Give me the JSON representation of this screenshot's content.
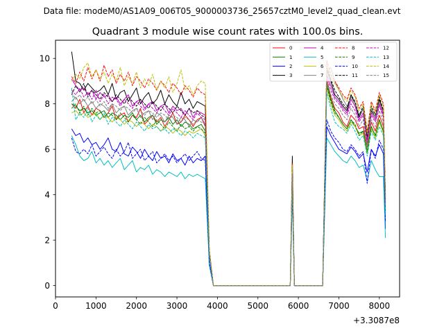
{
  "chart_data": {
    "type": "line",
    "suptitle": "Data file: modeM0/AS1A09_006T05_9000003736_25657cztM0_level2_quad_clean.evt",
    "title": "Quadrant 3 module wise count rates with 100.0s bins.",
    "xlabel": "",
    "ylabel": "",
    "x_offset_label": "+3.3087e8",
    "xlim": [
      0,
      8500
    ],
    "ylim": [
      -0.5,
      10.8
    ],
    "x_ticks": [
      0,
      1000,
      2000,
      3000,
      4000,
      5000,
      6000,
      7000,
      8000
    ],
    "y_ticks": [
      0,
      2,
      4,
      6,
      8,
      10
    ],
    "x": [
      400,
      500,
      600,
      700,
      800,
      900,
      1000,
      1100,
      1200,
      1300,
      1400,
      1500,
      1600,
      1700,
      1800,
      1900,
      2000,
      2100,
      2200,
      2300,
      2400,
      2500,
      2600,
      2700,
      2800,
      2900,
      3000,
      3100,
      3200,
      3300,
      3400,
      3500,
      3600,
      3700,
      3800,
      3900,
      4000,
      5800,
      5850,
      5900,
      6000,
      6600,
      6700,
      6800,
      6900,
      7000,
      7100,
      7200,
      7300,
      7400,
      7500,
      7600,
      7700,
      7800,
      7900,
      8000,
      8100,
      8150
    ],
    "legend_location": "upper right",
    "series": [
      {
        "name": "0",
        "color": "#ff0000",
        "style": "solid",
        "values": [
          8.0,
          7.8,
          8.2,
          7.6,
          7.9,
          7.5,
          7.8,
          7.7,
          7.4,
          7.6,
          7.9,
          7.3,
          7.5,
          7.6,
          7.2,
          7.5,
          7.4,
          7.8,
          7.1,
          7.3,
          7.5,
          7.2,
          7.4,
          7.0,
          7.3,
          7.6,
          7.1,
          7.2,
          7.5,
          7.3,
          7.0,
          7.3,
          7.4,
          7.0,
          1.5,
          0.0,
          0.0,
          0.0,
          5.0,
          0.0,
          0.0,
          0.0,
          9.1,
          8.3,
          7.8,
          7.6,
          7.2,
          7.0,
          7.5,
          7.3,
          6.9,
          7.0,
          6.1,
          7.2,
          6.8,
          7.5,
          7.0,
          3.5
        ]
      },
      {
        "name": "1",
        "color": "#008000",
        "style": "solid",
        "values": [
          8.0,
          7.9,
          7.7,
          7.8,
          7.6,
          7.7,
          7.5,
          7.6,
          7.7,
          7.4,
          7.6,
          7.5,
          7.3,
          7.5,
          7.4,
          7.6,
          7.3,
          7.5,
          7.2,
          7.4,
          7.5,
          7.1,
          7.3,
          7.2,
          7.4,
          7.1,
          7.3,
          7.0,
          7.2,
          7.1,
          6.9,
          7.0,
          7.1,
          6.8,
          1.4,
          0.0,
          0.0,
          0.0,
          4.8,
          0.0,
          0.0,
          0.0,
          8.9,
          8.2,
          7.7,
          7.4,
          7.1,
          6.9,
          7.3,
          7.0,
          6.7,
          6.8,
          5.9,
          7.0,
          6.6,
          7.3,
          6.8,
          3.4
        ]
      },
      {
        "name": "2",
        "color": "#0000ff",
        "style": "solid",
        "values": [
          6.9,
          6.6,
          6.7,
          6.3,
          6.5,
          6.2,
          6.3,
          6.0,
          6.2,
          6.5,
          6.0,
          5.9,
          6.3,
          5.8,
          5.7,
          6.1,
          5.9,
          5.6,
          6.0,
          5.7,
          5.5,
          5.9,
          5.6,
          5.7,
          5.4,
          5.8,
          5.5,
          5.6,
          5.3,
          5.7,
          5.4,
          5.6,
          5.5,
          5.7,
          1.0,
          0.0,
          0.0,
          0.0,
          4.3,
          0.0,
          0.0,
          0.0,
          7.0,
          6.6,
          6.3,
          6.0,
          5.9,
          5.8,
          6.1,
          5.9,
          5.6,
          5.8,
          5.0,
          6.0,
          5.7,
          6.2,
          5.8,
          2.5
        ]
      },
      {
        "name": "3",
        "color": "#000000",
        "style": "solid",
        "values": [
          10.3,
          9.0,
          8.9,
          8.6,
          8.9,
          8.7,
          8.5,
          8.6,
          8.8,
          8.4,
          8.9,
          8.2,
          8.5,
          8.6,
          8.1,
          8.4,
          8.7,
          8.0,
          8.3,
          8.5,
          8.0,
          8.2,
          8.6,
          8.0,
          8.4,
          8.1,
          7.9,
          8.5,
          8.0,
          8.2,
          7.8,
          8.1,
          8.0,
          7.9,
          1.5,
          0.0,
          0.0,
          0.0,
          5.7,
          0.0,
          0.0,
          0.0,
          9.5,
          9.0,
          8.4,
          8.2,
          7.9,
          7.7,
          8.4,
          8.0,
          7.4,
          7.8,
          6.5,
          7.7,
          7.4,
          8.2,
          7.6,
          3.8
        ]
      },
      {
        "name": "4",
        "color": "#bf00bf",
        "style": "solid",
        "values": [
          9.1,
          8.8,
          8.6,
          8.7,
          8.4,
          8.6,
          8.2,
          8.5,
          8.3,
          8.4,
          8.1,
          8.3,
          8.0,
          8.2,
          8.4,
          7.9,
          8.1,
          8.2,
          7.8,
          8.0,
          8.1,
          7.7,
          7.9,
          8.0,
          7.6,
          7.9,
          7.7,
          7.8,
          7.5,
          7.8,
          7.4,
          7.7,
          7.6,
          7.5,
          1.5,
          0.0,
          0.0,
          0.0,
          5.1,
          0.0,
          0.0,
          0.0,
          9.3,
          8.8,
          8.3,
          8.1,
          7.8,
          7.6,
          8.2,
          7.9,
          7.3,
          7.6,
          6.4,
          7.6,
          7.3,
          8.0,
          7.5,
          3.7
        ]
      },
      {
        "name": "5",
        "color": "#00bfbf",
        "style": "solid",
        "values": [
          6.6,
          6.2,
          5.7,
          5.5,
          5.6,
          5.9,
          5.4,
          5.6,
          5.3,
          5.5,
          5.2,
          5.4,
          5.6,
          5.1,
          5.3,
          5.5,
          5.0,
          5.2,
          5.1,
          5.3,
          4.9,
          5.1,
          5.0,
          4.8,
          5.0,
          4.9,
          4.8,
          5.0,
          4.7,
          4.9,
          4.8,
          4.9,
          4.8,
          4.7,
          0.9,
          0.0,
          0.0,
          0.0,
          4.0,
          0.0,
          0.0,
          0.0,
          6.5,
          6.2,
          5.9,
          5.7,
          5.5,
          5.4,
          5.7,
          5.5,
          5.2,
          5.3,
          4.6,
          5.5,
          5.1,
          4.8,
          4.8,
          2.1
        ]
      },
      {
        "name": "6",
        "color": "#bfbf00",
        "style": "solid",
        "values": [
          7.6,
          7.7,
          7.5,
          7.6,
          7.4,
          7.5,
          7.6,
          7.3,
          7.5,
          7.4,
          7.2,
          7.4,
          7.3,
          7.1,
          7.3,
          7.2,
          7.0,
          7.2,
          7.1,
          6.9,
          7.1,
          7.0,
          6.8,
          7.0,
          6.9,
          6.7,
          6.9,
          6.8,
          6.6,
          6.8,
          6.7,
          6.8,
          6.9,
          6.6,
          1.4,
          0.0,
          0.0,
          0.0,
          4.7,
          0.0,
          0.0,
          0.0,
          8.7,
          8.0,
          7.5,
          7.3,
          7.0,
          6.8,
          7.2,
          7.0,
          6.6,
          6.7,
          5.8,
          6.9,
          6.5,
          7.2,
          6.7,
          3.3
        ]
      },
      {
        "name": "7",
        "color": "#808080",
        "style": "solid",
        "values": [
          8.1,
          8.3,
          8.0,
          8.2,
          7.9,
          8.1,
          7.8,
          8.0,
          7.9,
          7.7,
          8.0,
          7.6,
          7.8,
          7.9,
          7.5,
          7.7,
          7.8,
          7.4,
          7.6,
          7.7,
          7.3,
          7.6,
          7.5,
          7.2,
          7.5,
          7.4,
          7.1,
          7.4,
          7.3,
          7.0,
          7.3,
          7.2,
          7.4,
          7.1,
          1.5,
          0.0,
          0.0,
          0.0,
          4.9,
          0.0,
          0.0,
          0.0,
          9.4,
          9.6,
          9.0,
          8.6,
          8.2,
          7.9,
          8.3,
          8.0,
          7.5,
          7.8,
          6.2,
          7.8,
          7.4,
          8.1,
          7.6,
          3.6
        ]
      },
      {
        "name": "8",
        "color": "#ff0000",
        "style": "dashed",
        "values": [
          9.2,
          8.9,
          9.4,
          9.0,
          9.6,
          9.1,
          9.5,
          9.0,
          9.7,
          9.2,
          9.5,
          8.9,
          9.3,
          9.0,
          9.4,
          8.8,
          9.2,
          9.0,
          8.7,
          9.1,
          8.9,
          8.6,
          9.0,
          8.8,
          8.5,
          8.9,
          8.7,
          8.4,
          8.8,
          8.6,
          8.3,
          8.7,
          8.5,
          8.4,
          1.6,
          0.0,
          0.0,
          0.0,
          5.4,
          0.0,
          0.0,
          0.0,
          9.9,
          9.3,
          9.0,
          8.7,
          8.4,
          8.2,
          8.7,
          8.4,
          7.8,
          8.1,
          6.8,
          8.1,
          7.7,
          8.5,
          8.0,
          4.0
        ]
      },
      {
        "name": "9",
        "color": "#008000",
        "style": "dashed",
        "values": [
          7.8,
          8.0,
          7.6,
          7.9,
          7.5,
          7.8,
          7.6,
          7.7,
          7.4,
          7.6,
          7.5,
          7.3,
          7.6,
          7.4,
          7.2,
          7.5,
          7.3,
          7.1,
          7.4,
          7.2,
          7.0,
          7.3,
          7.1,
          6.9,
          7.2,
          7.0,
          6.8,
          7.1,
          6.9,
          7.0,
          6.8,
          7.0,
          6.9,
          6.7,
          1.4,
          0.0,
          0.0,
          0.0,
          4.8,
          0.0,
          0.0,
          0.0,
          8.8,
          8.1,
          7.6,
          7.4,
          7.1,
          6.9,
          7.3,
          7.1,
          6.6,
          6.8,
          5.9,
          7.0,
          6.6,
          7.3,
          6.8,
          3.3
        ]
      },
      {
        "name": "10",
        "color": "#0000ff",
        "style": "dashed",
        "values": [
          6.5,
          5.9,
          5.8,
          6.0,
          5.8,
          6.2,
          5.7,
          5.9,
          6.1,
          5.8,
          5.6,
          6.0,
          5.7,
          5.9,
          6.3,
          5.6,
          5.8,
          6.0,
          5.5,
          5.7,
          5.9,
          5.4,
          5.6,
          5.8,
          5.5,
          5.7,
          5.4,
          5.6,
          5.8,
          5.5,
          5.7,
          5.9,
          5.6,
          5.5,
          1.0,
          0.0,
          0.0,
          0.0,
          4.2,
          0.0,
          0.0,
          0.0,
          7.3,
          6.8,
          6.5,
          6.3,
          6.0,
          5.9,
          6.2,
          6.0,
          5.7,
          5.9,
          4.5,
          6.0,
          5.6,
          6.4,
          6.0,
          2.8
        ]
      },
      {
        "name": "11",
        "color": "#000000",
        "style": "dashed",
        "values": [
          8.4,
          8.8,
          8.5,
          8.9,
          8.3,
          8.6,
          8.4,
          8.2,
          8.5,
          8.3,
          8.1,
          8.4,
          8.2,
          8.0,
          8.3,
          8.1,
          7.9,
          8.2,
          8.0,
          7.8,
          8.1,
          7.9,
          7.7,
          8.0,
          7.8,
          7.6,
          7.9,
          7.7,
          7.5,
          7.8,
          7.6,
          7.7,
          7.5,
          7.4,
          1.5,
          0.0,
          0.0,
          0.0,
          5.2,
          0.0,
          0.0,
          0.0,
          9.6,
          9.1,
          8.6,
          8.3,
          8.0,
          7.8,
          8.4,
          8.1,
          7.5,
          7.9,
          6.6,
          7.9,
          7.5,
          8.3,
          7.7,
          3.9
        ]
      },
      {
        "name": "12",
        "color": "#bf00bf",
        "style": "dashed",
        "values": [
          8.6,
          8.4,
          8.7,
          8.3,
          8.5,
          8.2,
          8.6,
          8.1,
          8.4,
          8.0,
          8.3,
          8.2,
          7.9,
          8.2,
          8.0,
          7.8,
          8.1,
          7.9,
          7.7,
          8.0,
          7.8,
          7.6,
          7.9,
          7.7,
          7.5,
          7.8,
          7.6,
          7.4,
          7.7,
          7.5,
          7.3,
          7.6,
          7.4,
          7.3,
          1.4,
          0.0,
          0.0,
          0.0,
          5.0,
          0.0,
          0.0,
          0.0,
          9.2,
          8.6,
          8.2,
          8.0,
          7.7,
          7.5,
          8.0,
          7.7,
          7.2,
          7.5,
          6.3,
          7.5,
          7.2,
          7.9,
          7.4,
          3.6
        ]
      },
      {
        "name": "13",
        "color": "#00bfbf",
        "style": "dashed",
        "values": [
          8.7,
          7.3,
          7.6,
          7.4,
          7.8,
          7.2,
          7.5,
          7.3,
          7.6,
          7.1,
          7.4,
          7.2,
          7.0,
          7.3,
          7.1,
          6.9,
          7.2,
          7.0,
          6.8,
          7.1,
          6.9,
          7.0,
          6.8,
          6.9,
          6.7,
          6.9,
          6.8,
          6.6,
          6.8,
          6.7,
          6.5,
          6.7,
          6.6,
          6.5,
          1.3,
          0.0,
          0.0,
          0.0,
          4.5,
          0.0,
          0.0,
          0.0,
          8.5,
          7.8,
          7.2,
          7.0,
          6.9,
          6.7,
          7.1,
          6.8,
          6.4,
          6.6,
          5.7,
          6.8,
          6.4,
          7.0,
          6.6,
          3.2
        ]
      },
      {
        "name": "14",
        "color": "#bfbf00",
        "style": "dashed",
        "values": [
          9.0,
          9.3,
          9.1,
          9.6,
          9.8,
          9.2,
          9.5,
          9.1,
          9.4,
          8.9,
          9.3,
          9.0,
          9.6,
          8.8,
          9.2,
          8.9,
          9.4,
          8.7,
          9.1,
          8.8,
          9.3,
          8.6,
          9.0,
          8.7,
          9.2,
          8.5,
          8.9,
          9.5,
          8.6,
          8.8,
          8.4,
          8.8,
          9.0,
          8.9,
          1.6,
          0.0,
          0.0,
          0.0,
          5.3,
          0.0,
          0.0,
          0.0,
          9.7,
          9.2,
          8.9,
          8.6,
          8.3,
          8.1,
          8.6,
          8.3,
          7.7,
          8.0,
          6.7,
          8.0,
          7.6,
          8.4,
          7.9,
          3.9
        ]
      },
      {
        "name": "15",
        "color": "#808080",
        "style": "dashed",
        "values": [
          8.5,
          8.2,
          8.4,
          8.1,
          8.3,
          8.0,
          8.2,
          7.9,
          8.1,
          7.8,
          8.0,
          7.9,
          7.7,
          7.9,
          7.8,
          7.6,
          7.8,
          7.7,
          7.5,
          7.7,
          7.6,
          7.4,
          7.6,
          7.5,
          7.3,
          7.5,
          7.4,
          7.2,
          7.4,
          7.3,
          7.1,
          7.3,
          7.2,
          7.1,
          1.4,
          0.0,
          0.0,
          0.0,
          4.9,
          0.0,
          0.0,
          0.0,
          9.0,
          8.4,
          8.0,
          7.8,
          7.5,
          7.3,
          7.8,
          7.5,
          7.0,
          7.3,
          6.1,
          7.3,
          7.0,
          7.7,
          7.2,
          3.5
        ]
      }
    ]
  }
}
